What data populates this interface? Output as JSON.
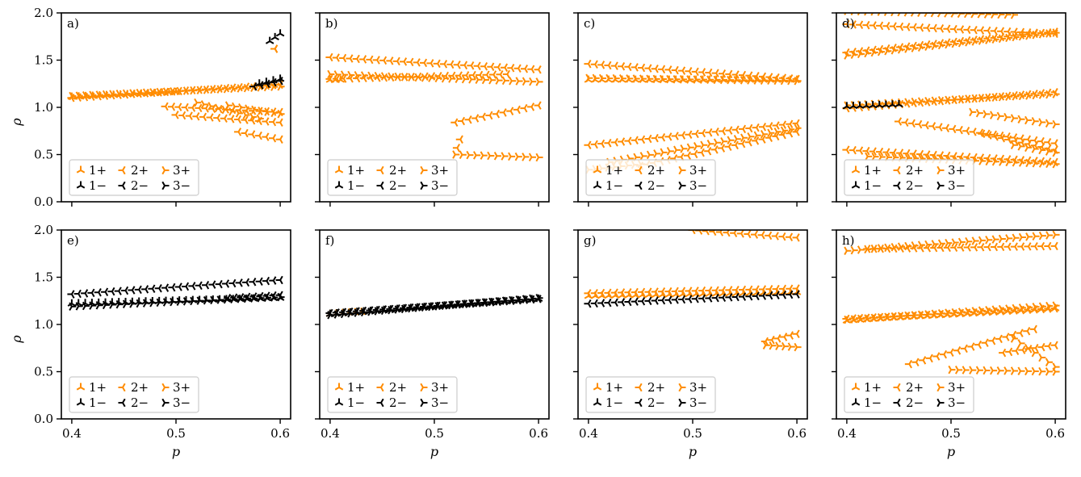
{
  "colors": {
    "plus": "#ff8c00",
    "minus": "#000000",
    "frame": "#000000",
    "legend_border": "#cccccc"
  },
  "chart_data": {
    "type": "scatter",
    "layout": "2x4 grid",
    "shared_x": true,
    "shared_y": true,
    "xlabel": "p",
    "ylabel": "ρ",
    "xlim": [
      0.39,
      0.61
    ],
    "ylim": [
      0.0,
      2.0
    ],
    "xticks": [
      0.4,
      0.5,
      0.6
    ],
    "xtick_labels": [
      "0.4",
      "0.5",
      "0.6"
    ],
    "yticks": [
      0.0,
      0.5,
      1.0,
      1.5,
      2.0
    ],
    "ytick_labels": [
      "0.0",
      "0.5",
      "1.0",
      "1.5",
      "2.0"
    ],
    "legend": {
      "placement": "lower-left",
      "columns": 3,
      "entries": [
        {
          "label": "1+",
          "marker": "tri_down",
          "color": "#ff8c00"
        },
        {
          "label": "2+",
          "marker": "tri_left",
          "color": "#ff8c00"
        },
        {
          "label": "3+",
          "marker": "tri_right",
          "color": "#ff8c00"
        },
        {
          "label": "1−",
          "marker": "tri_down",
          "color": "#000000"
        },
        {
          "label": "2−",
          "marker": "tri_left",
          "color": "#000000"
        },
        {
          "label": "3−",
          "marker": "tri_right",
          "color": "#000000"
        }
      ]
    },
    "panels": [
      {
        "label": "a)",
        "curves": [
          {
            "series": "2+",
            "x": [
              0.4,
              0.6
            ],
            "y": [
              1.1,
              1.24
            ]
          },
          {
            "series": "3+",
            "x": [
              0.4,
              0.6
            ],
            "y": [
              1.12,
              1.22
            ]
          },
          {
            "series": "1+",
            "x": [
              0.4,
              0.5
            ],
            "y": [
              1.11,
              1.16
            ]
          },
          {
            "series": "2+",
            "x": [
              0.49,
              0.6
            ],
            "y": [
              1.01,
              0.95
            ]
          },
          {
            "series": "2+",
            "x": [
              0.5,
              0.6
            ],
            "y": [
              0.92,
              0.84
            ]
          },
          {
            "series": "3+",
            "x": [
              0.52,
              0.58
            ],
            "y": [
              1.05,
              0.88
            ]
          },
          {
            "series": "2+",
            "x": [
              0.56,
              0.6
            ],
            "y": [
              0.74,
              0.66
            ]
          },
          {
            "series": "3+",
            "x": [
              0.55,
              0.6
            ],
            "y": [
              1.02,
              0.93
            ]
          },
          {
            "series": "2−",
            "x": [
              0.575,
              0.6
            ],
            "y": [
              1.22,
              1.28
            ]
          },
          {
            "series": "1−",
            "x": [
              0.58,
              0.6
            ],
            "y": [
              1.25,
              1.3
            ]
          },
          {
            "series": "1−",
            "x": [
              0.59,
              0.6
            ],
            "y": [
              1.7,
              1.78
            ]
          },
          {
            "series": "2+",
            "x": [
              0.595,
              0.595
            ],
            "y": [
              1.62,
              1.62
            ]
          }
        ]
      },
      {
        "label": "b)",
        "curves": [
          {
            "series": "2+",
            "x": [
              0.4,
              0.6
            ],
            "y": [
              1.53,
              1.4
            ]
          },
          {
            "series": "3+",
            "x": [
              0.4,
              0.6
            ],
            "y": [
              1.35,
              1.27
            ]
          },
          {
            "series": "2+",
            "x": [
              0.4,
              0.57
            ],
            "y": [
              1.3,
              1.35
            ]
          },
          {
            "series": "1+",
            "x": [
              0.4,
              0.41
            ],
            "y": [
              1.29,
              1.29
            ]
          },
          {
            "series": "2+",
            "x": [
              0.52,
              0.6
            ],
            "y": [
              0.84,
              1.02
            ]
          },
          {
            "series": "3+",
            "x": [
              0.52,
              0.6
            ],
            "y": [
              0.5,
              0.47
            ]
          },
          {
            "series": "2+",
            "x": [
              0.522,
              0.525
            ],
            "y": [
              0.57,
              0.66
            ]
          }
        ]
      },
      {
        "label": "c)",
        "curves": [
          {
            "series": "2+",
            "x": [
              0.4,
              0.6
            ],
            "y": [
              1.46,
              1.3
            ]
          },
          {
            "series": "1+",
            "x": [
              0.4,
              0.6
            ],
            "y": [
              1.29,
              1.29
            ]
          },
          {
            "series": "3+",
            "x": [
              0.4,
              0.6
            ],
            "y": [
              1.31,
              1.28
            ]
          },
          {
            "series": "2+",
            "x": [
              0.4,
              0.6
            ],
            "y": [
              0.6,
              0.83
            ]
          },
          {
            "series": "3+",
            "x": [
              0.42,
              0.6
            ],
            "y": [
              0.42,
              0.78
            ]
          },
          {
            "series": "2+",
            "x": [
              0.45,
              0.6
            ],
            "y": [
              0.38,
              0.74
            ]
          },
          {
            "series": "3+",
            "x": [
              0.4,
              0.45
            ],
            "y": [
              0.34,
              0.4
            ]
          }
        ]
      },
      {
        "label": "d)",
        "curves": [
          {
            "series": "2+",
            "x": [
              0.4,
              0.6
            ],
            "y": [
              1.88,
              1.78
            ]
          },
          {
            "series": "3+",
            "x": [
              0.4,
              0.56
            ],
            "y": [
              2.02,
              1.98
            ]
          },
          {
            "series": "2+",
            "x": [
              0.4,
              0.6
            ],
            "y": [
              1.58,
              1.8
            ]
          },
          {
            "series": "3+",
            "x": [
              0.4,
              0.6
            ],
            "y": [
              1.55,
              1.79
            ]
          },
          {
            "series": "2+",
            "x": [
              0.4,
              0.6
            ],
            "y": [
              0.99,
              1.16
            ]
          },
          {
            "series": "3+",
            "x": [
              0.4,
              0.6
            ],
            "y": [
              1.02,
              1.14
            ]
          },
          {
            "series": "1−",
            "x": [
              0.4,
              0.45
            ],
            "y": [
              1.01,
              1.03
            ]
          },
          {
            "series": "2+",
            "x": [
              0.45,
              0.6
            ],
            "y": [
              0.85,
              0.62
            ]
          },
          {
            "series": "3+",
            "x": [
              0.52,
              0.6
            ],
            "y": [
              0.95,
              0.82
            ]
          },
          {
            "series": "2+",
            "x": [
              0.53,
              0.6
            ],
            "y": [
              0.72,
              0.55
            ]
          },
          {
            "series": "3+",
            "x": [
              0.56,
              0.6
            ],
            "y": [
              0.6,
              0.52
            ]
          },
          {
            "series": "2+",
            "x": [
              0.4,
              0.6
            ],
            "y": [
              0.55,
              0.42
            ]
          },
          {
            "series": "3+",
            "x": [
              0.42,
              0.6
            ],
            "y": [
              0.48,
              0.4
            ]
          }
        ]
      },
      {
        "label": "e)",
        "curves": [
          {
            "series": "2−",
            "x": [
              0.4,
              0.6
            ],
            "y": [
              1.32,
              1.47
            ]
          },
          {
            "series": "3−",
            "x": [
              0.4,
              0.6
            ],
            "y": [
              1.19,
              1.29
            ]
          },
          {
            "series": "1−",
            "x": [
              0.4,
              0.6
            ],
            "y": [
              1.22,
              1.28
            ]
          },
          {
            "series": "2−",
            "x": [
              0.55,
              0.6
            ],
            "y": [
              1.28,
              1.31
            ]
          }
        ]
      },
      {
        "label": "f)",
        "curves": [
          {
            "series": "1+",
            "x": [
              0.4,
              0.43
            ],
            "y": [
              1.11,
              1.13
            ]
          },
          {
            "series": "2−",
            "x": [
              0.4,
              0.6
            ],
            "y": [
              1.12,
              1.27
            ]
          },
          {
            "series": "3−",
            "x": [
              0.4,
              0.6
            ],
            "y": [
              1.1,
              1.28
            ]
          },
          {
            "series": "1−",
            "x": [
              0.4,
              0.6
            ],
            "y": [
              1.11,
              1.27
            ]
          }
        ]
      },
      {
        "label": "g)",
        "curves": [
          {
            "series": "2+",
            "x": [
              0.5,
              0.6
            ],
            "y": [
              2.0,
              1.92
            ]
          },
          {
            "series": "2+",
            "x": [
              0.4,
              0.6
            ],
            "y": [
              1.33,
              1.38
            ]
          },
          {
            "series": "1+",
            "x": [
              0.4,
              0.6
            ],
            "y": [
              1.3,
              1.34
            ]
          },
          {
            "series": "2−",
            "x": [
              0.4,
              0.6
            ],
            "y": [
              1.22,
              1.32
            ]
          },
          {
            "series": "2+",
            "x": [
              0.57,
              0.6
            ],
            "y": [
              0.82,
              0.9
            ]
          },
          {
            "series": "3+",
            "x": [
              0.57,
              0.6
            ],
            "y": [
              0.78,
              0.76
            ]
          }
        ]
      },
      {
        "label": "h)",
        "curves": [
          {
            "series": "3+",
            "x": [
              0.4,
              0.6
            ],
            "y": [
              1.78,
              1.95
            ]
          },
          {
            "series": "2+",
            "x": [
              0.42,
              0.6
            ],
            "y": [
              1.8,
              1.83
            ]
          },
          {
            "series": "3+",
            "x": [
              0.4,
              0.6
            ],
            "y": [
              1.05,
              1.2
            ]
          },
          {
            "series": "2+",
            "x": [
              0.4,
              0.6
            ],
            "y": [
              1.06,
              1.17
            ]
          },
          {
            "series": "1+",
            "x": [
              0.4,
              0.6
            ],
            "y": [
              1.04,
              1.17
            ]
          },
          {
            "series": "2+",
            "x": [
              0.46,
              0.58
            ],
            "y": [
              0.58,
              0.95
            ]
          },
          {
            "series": "3+",
            "x": [
              0.5,
              0.6
            ],
            "y": [
              0.52,
              0.5
            ]
          },
          {
            "series": "2+",
            "x": [
              0.55,
              0.6
            ],
            "y": [
              0.7,
              0.78
            ]
          },
          {
            "series": "3+",
            "x": [
              0.56,
              0.6
            ],
            "y": [
              0.85,
              0.55
            ]
          }
        ]
      }
    ]
  }
}
